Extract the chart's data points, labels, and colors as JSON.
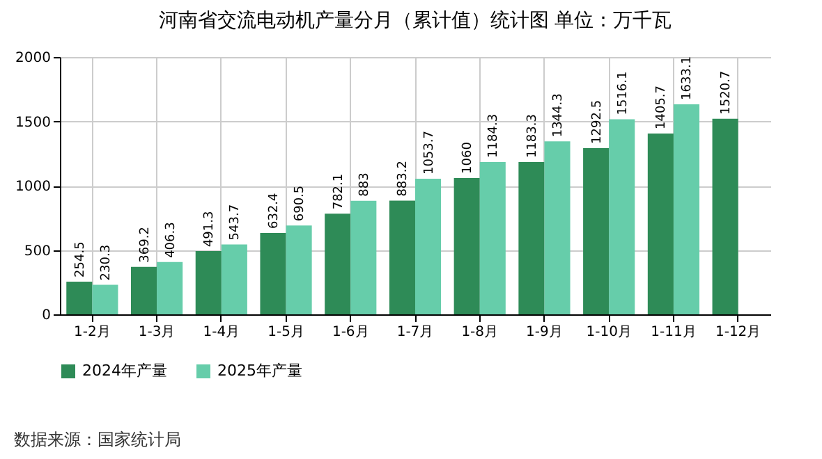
{
  "chart_data": {
    "type": "bar",
    "title": "河南省交流电动机产量分月（累计值）统计图 单位：万千瓦",
    "categories": [
      "1-2月",
      "1-3月",
      "1-4月",
      "1-5月",
      "1-6月",
      "1-7月",
      "1-8月",
      "1-9月",
      "1-10月",
      "1-11月",
      "1-12月"
    ],
    "series": [
      {
        "name": "2024年产量",
        "color": "#2e8b57",
        "values": [
          254.5,
          369.2,
          491.3,
          632.4,
          782.1,
          883.2,
          1060,
          1183.3,
          1292.5,
          1405.7,
          1520.7
        ]
      },
      {
        "name": "2025年产量",
        "color": "#66cdaa",
        "values": [
          230.3,
          406.3,
          543.7,
          690.5,
          883,
          1053.7,
          1184.3,
          1344.3,
          1516.1,
          1633.1,
          null
        ]
      }
    ],
    "ylim": [
      0,
      2000
    ],
    "yticks": [
      0,
      500,
      1000,
      1500,
      2000
    ],
    "grid": true,
    "legend": "bottom",
    "data_labels": true,
    "annotations": [
      "数据来源：国家统计局"
    ]
  }
}
